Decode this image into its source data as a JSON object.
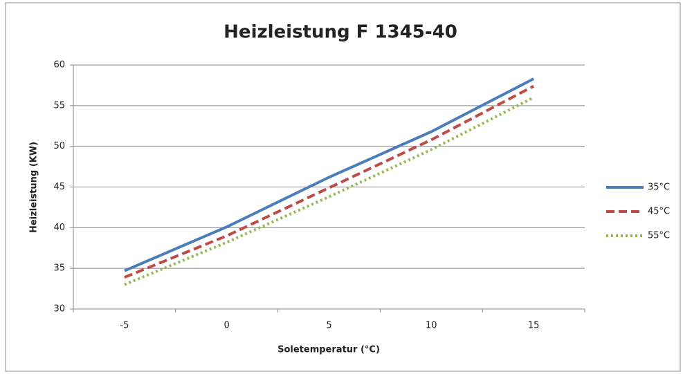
{
  "chart_data": {
    "type": "line",
    "title": "Heizleistung F 1345-40",
    "x_label": "Soletemperatur (°C)",
    "y_label": "Heizleistung (KW)",
    "categories": [
      "-5",
      "0",
      "5",
      "10",
      "15"
    ],
    "series": [
      {
        "name": "35°C",
        "color": "#4a7ebb",
        "style": "solid",
        "values": [
          34.7,
          40.1,
          46.2,
          51.8,
          58.3
        ]
      },
      {
        "name": "45°C",
        "color": "#be4b48",
        "style": "dashed",
        "values": [
          33.9,
          39.0,
          44.9,
          50.8,
          57.4
        ]
      },
      {
        "name": "55°C",
        "color": "#98b954",
        "style": "dotted",
        "values": [
          33.0,
          38.2,
          43.8,
          49.6,
          56.0
        ]
      }
    ],
    "ylim": [
      30,
      60
    ],
    "yticks": [
      30,
      35,
      40,
      45,
      50,
      55,
      60
    ],
    "grid": true,
    "legend": "right"
  }
}
